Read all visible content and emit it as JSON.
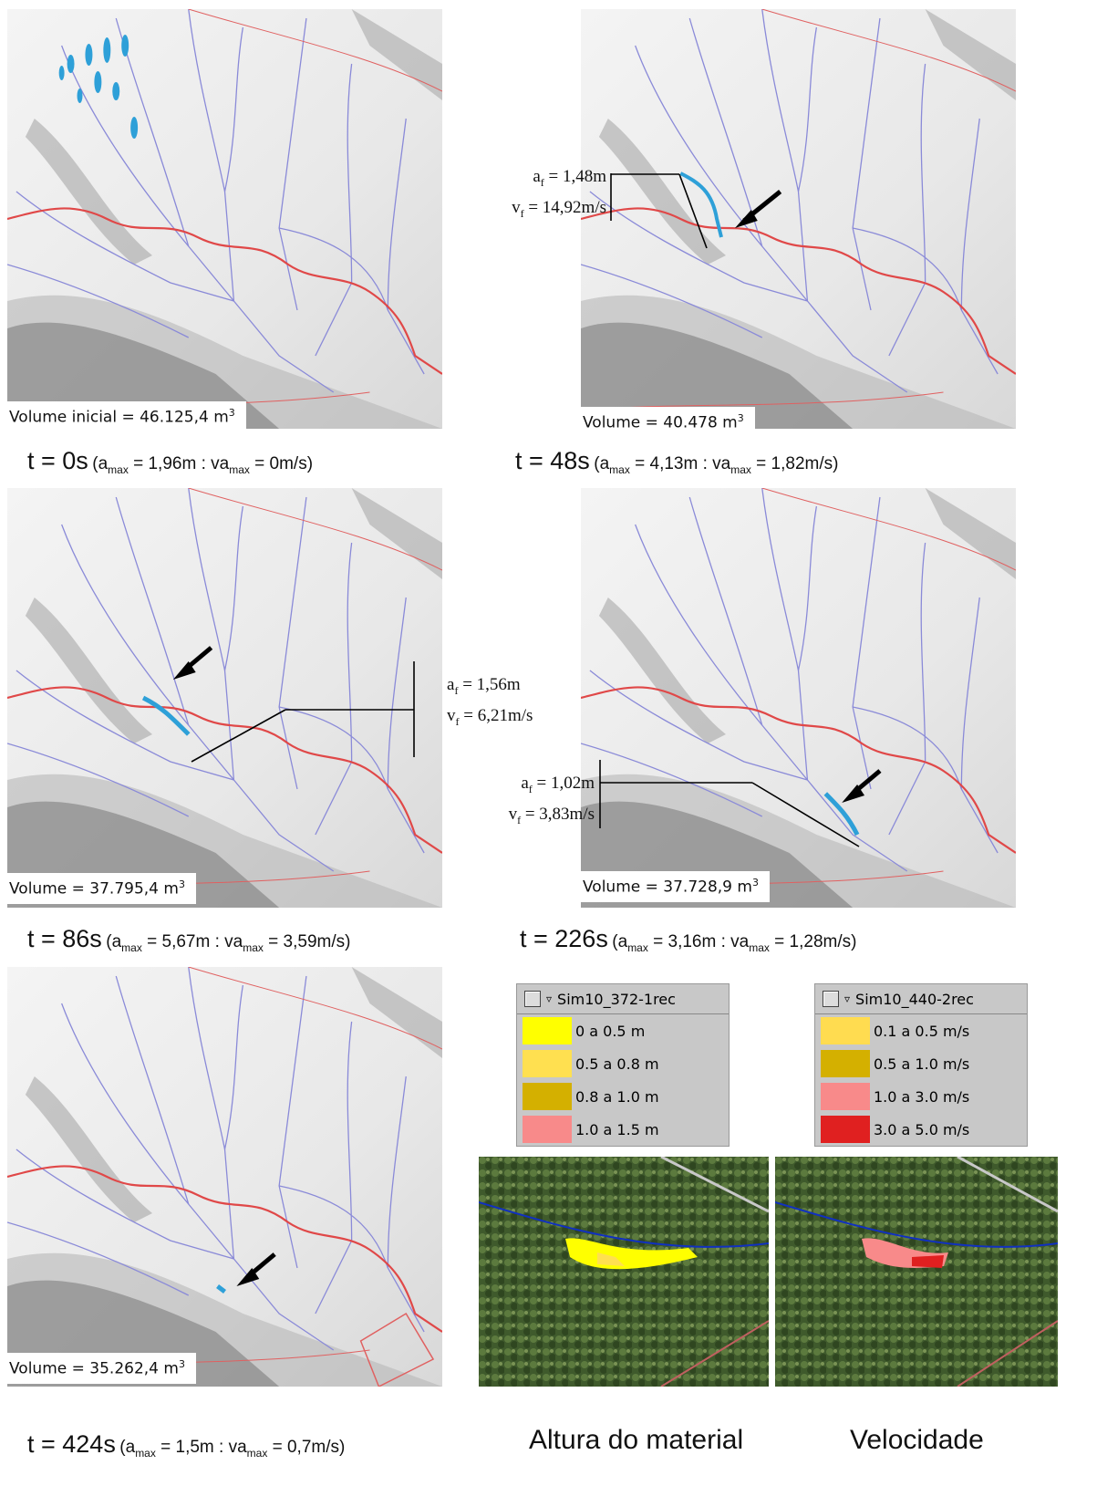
{
  "panels": [
    {
      "volume": [
        "Volume inicial = 46.125,4 m",
        "3"
      ],
      "time": "t = 0s",
      "detail": [
        "(a",
        "max",
        " = 1,96m  : va",
        "max",
        " = 0m/s)"
      ]
    },
    {
      "volume": [
        "Volume = 40.478 m",
        "3"
      ],
      "time": "t = 48s",
      "detail": [
        "(a",
        "max",
        " = 4,13m  : va",
        "max",
        " = 1,82m/s)"
      ],
      "annotation": [
        [
          "a",
          "f",
          " = 1,48m"
        ],
        [
          "v",
          "f",
          " = 14,92m/s"
        ]
      ]
    },
    {
      "volume": [
        "Volume = 37.795,4 m",
        "3"
      ],
      "time": "t = 86s",
      "detail": [
        "(a",
        "max",
        " = 5,67m  : va",
        "max",
        " = 3,59m/s)"
      ],
      "annotation": [
        [
          "a",
          "f",
          " = 1,56m"
        ],
        [
          "v",
          "f",
          " = 6,21m/s"
        ]
      ]
    },
    {
      "volume": [
        "Volume = 37.728,9 m",
        "3"
      ],
      "time": "t = 226s",
      "detail": [
        "(a",
        "max",
        " = 3,16m  : va",
        "max",
        " = 1,28m/s)"
      ],
      "annotation": [
        [
          "a",
          "f",
          " = 1,02m"
        ],
        [
          "v",
          "f",
          " = 3,83m/s"
        ]
      ]
    },
    {
      "volume": [
        "Volume = 35.262,4 m",
        "3"
      ],
      "time": "t = 424s",
      "detail": [
        "(a",
        "max",
        " = 1,5m  : va",
        "max",
        " = 0,7m/s)"
      ]
    }
  ],
  "legends": [
    {
      "name": "Sim10_372-1rec",
      "caption": "Altura do material",
      "items": [
        {
          "label": "0 a 0.5 m",
          "color": "#ffff00"
        },
        {
          "label": "0.5 a 0.8 m",
          "color": "#ffe050"
        },
        {
          "label": "0.8 a 1.0 m",
          "color": "#d4b000"
        },
        {
          "label": "1.0 a 1.5 m",
          "color": "#f88a8a"
        }
      ]
    },
    {
      "name": "Sim10_440-2rec",
      "caption": "Velocidade",
      "items": [
        {
          "label": "0.1 a 0.5 m/s",
          "color": "#ffdc50"
        },
        {
          "label": "0.5 a 1.0 m/s",
          "color": "#d4b000"
        },
        {
          "label": "1.0 a 3.0 m/s",
          "color": "#f88a8a"
        },
        {
          "label": "3.0 a 5.0 m/s",
          "color": "#e02020"
        }
      ]
    }
  ]
}
